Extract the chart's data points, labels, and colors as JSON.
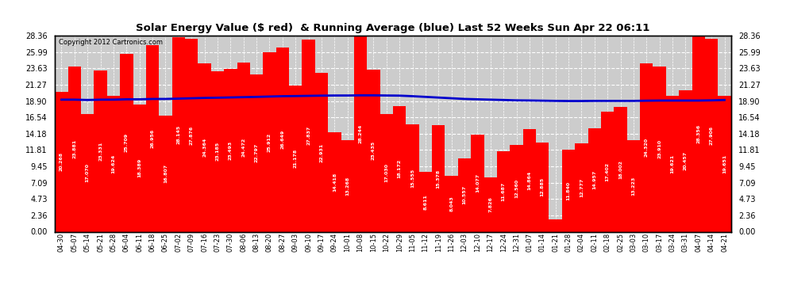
{
  "title": "Solar Energy Value ($ red)  & Running Average (blue) Last 52 Weeks Sun Apr 22 06:11",
  "copyright": "Copyright 2012 Cartronics.com",
  "bar_color": "#ff0000",
  "line_color": "#0000cc",
  "background_color": "#ffffff",
  "plot_bg_color": "#cccccc",
  "grid_color": "#ffffff",
  "ylim_min": 0.0,
  "ylim_max": 28.36,
  "yticks": [
    0.0,
    2.36,
    4.73,
    7.09,
    9.45,
    11.81,
    14.18,
    16.54,
    18.9,
    21.27,
    23.63,
    25.99,
    28.36
  ],
  "categories": [
    "04-30",
    "05-07",
    "05-14",
    "05-21",
    "05-28",
    "06-04",
    "06-11",
    "06-18",
    "06-25",
    "07-02",
    "07-09",
    "07-16",
    "07-23",
    "07-30",
    "08-06",
    "08-13",
    "08-20",
    "08-27",
    "09-03",
    "09-10",
    "09-17",
    "09-24",
    "10-01",
    "10-08",
    "10-15",
    "10-22",
    "10-29",
    "11-05",
    "11-12",
    "11-19",
    "11-26",
    "12-03",
    "12-10",
    "12-17",
    "12-24",
    "12-31",
    "01-07",
    "01-14",
    "01-21",
    "01-28",
    "02-04",
    "02-11",
    "02-18",
    "02-25",
    "03-03",
    "03-10",
    "03-17",
    "03-24",
    "03-31",
    "04-07",
    "04-14",
    "04-21"
  ],
  "values": [
    20.268,
    23.881,
    17.07,
    23.331,
    19.624,
    25.709,
    18.389,
    26.956,
    16.807,
    28.145,
    27.876,
    24.364,
    23.185,
    23.493,
    24.472,
    22.797,
    25.912,
    26.649,
    21.178,
    27.837,
    22.931,
    14.418,
    13.268,
    28.244,
    23.435,
    17.03,
    18.172,
    15.555,
    8.611,
    15.378,
    8.043,
    10.557,
    14.077,
    7.826,
    11.687,
    12.56,
    14.864,
    12.885,
    1.802,
    11.84,
    12.777,
    14.957,
    17.402,
    18.002,
    13.223,
    24.32,
    23.91,
    19.621,
    20.457,
    28.356,
    27.906,
    19.651
  ],
  "running_avg": [
    19.1,
    19.1,
    19.05,
    19.1,
    19.1,
    19.15,
    19.15,
    19.2,
    19.2,
    19.25,
    19.3,
    19.35,
    19.38,
    19.42,
    19.46,
    19.5,
    19.55,
    19.6,
    19.62,
    19.65,
    19.68,
    19.7,
    19.7,
    19.72,
    19.72,
    19.7,
    19.68,
    19.6,
    19.5,
    19.4,
    19.3,
    19.2,
    19.15,
    19.1,
    19.05,
    19.0,
    18.98,
    18.95,
    18.92,
    18.9,
    18.9,
    18.92,
    18.92,
    18.92,
    18.92,
    18.95,
    18.97,
    18.97,
    18.97,
    18.97,
    19.0,
    19.05
  ]
}
